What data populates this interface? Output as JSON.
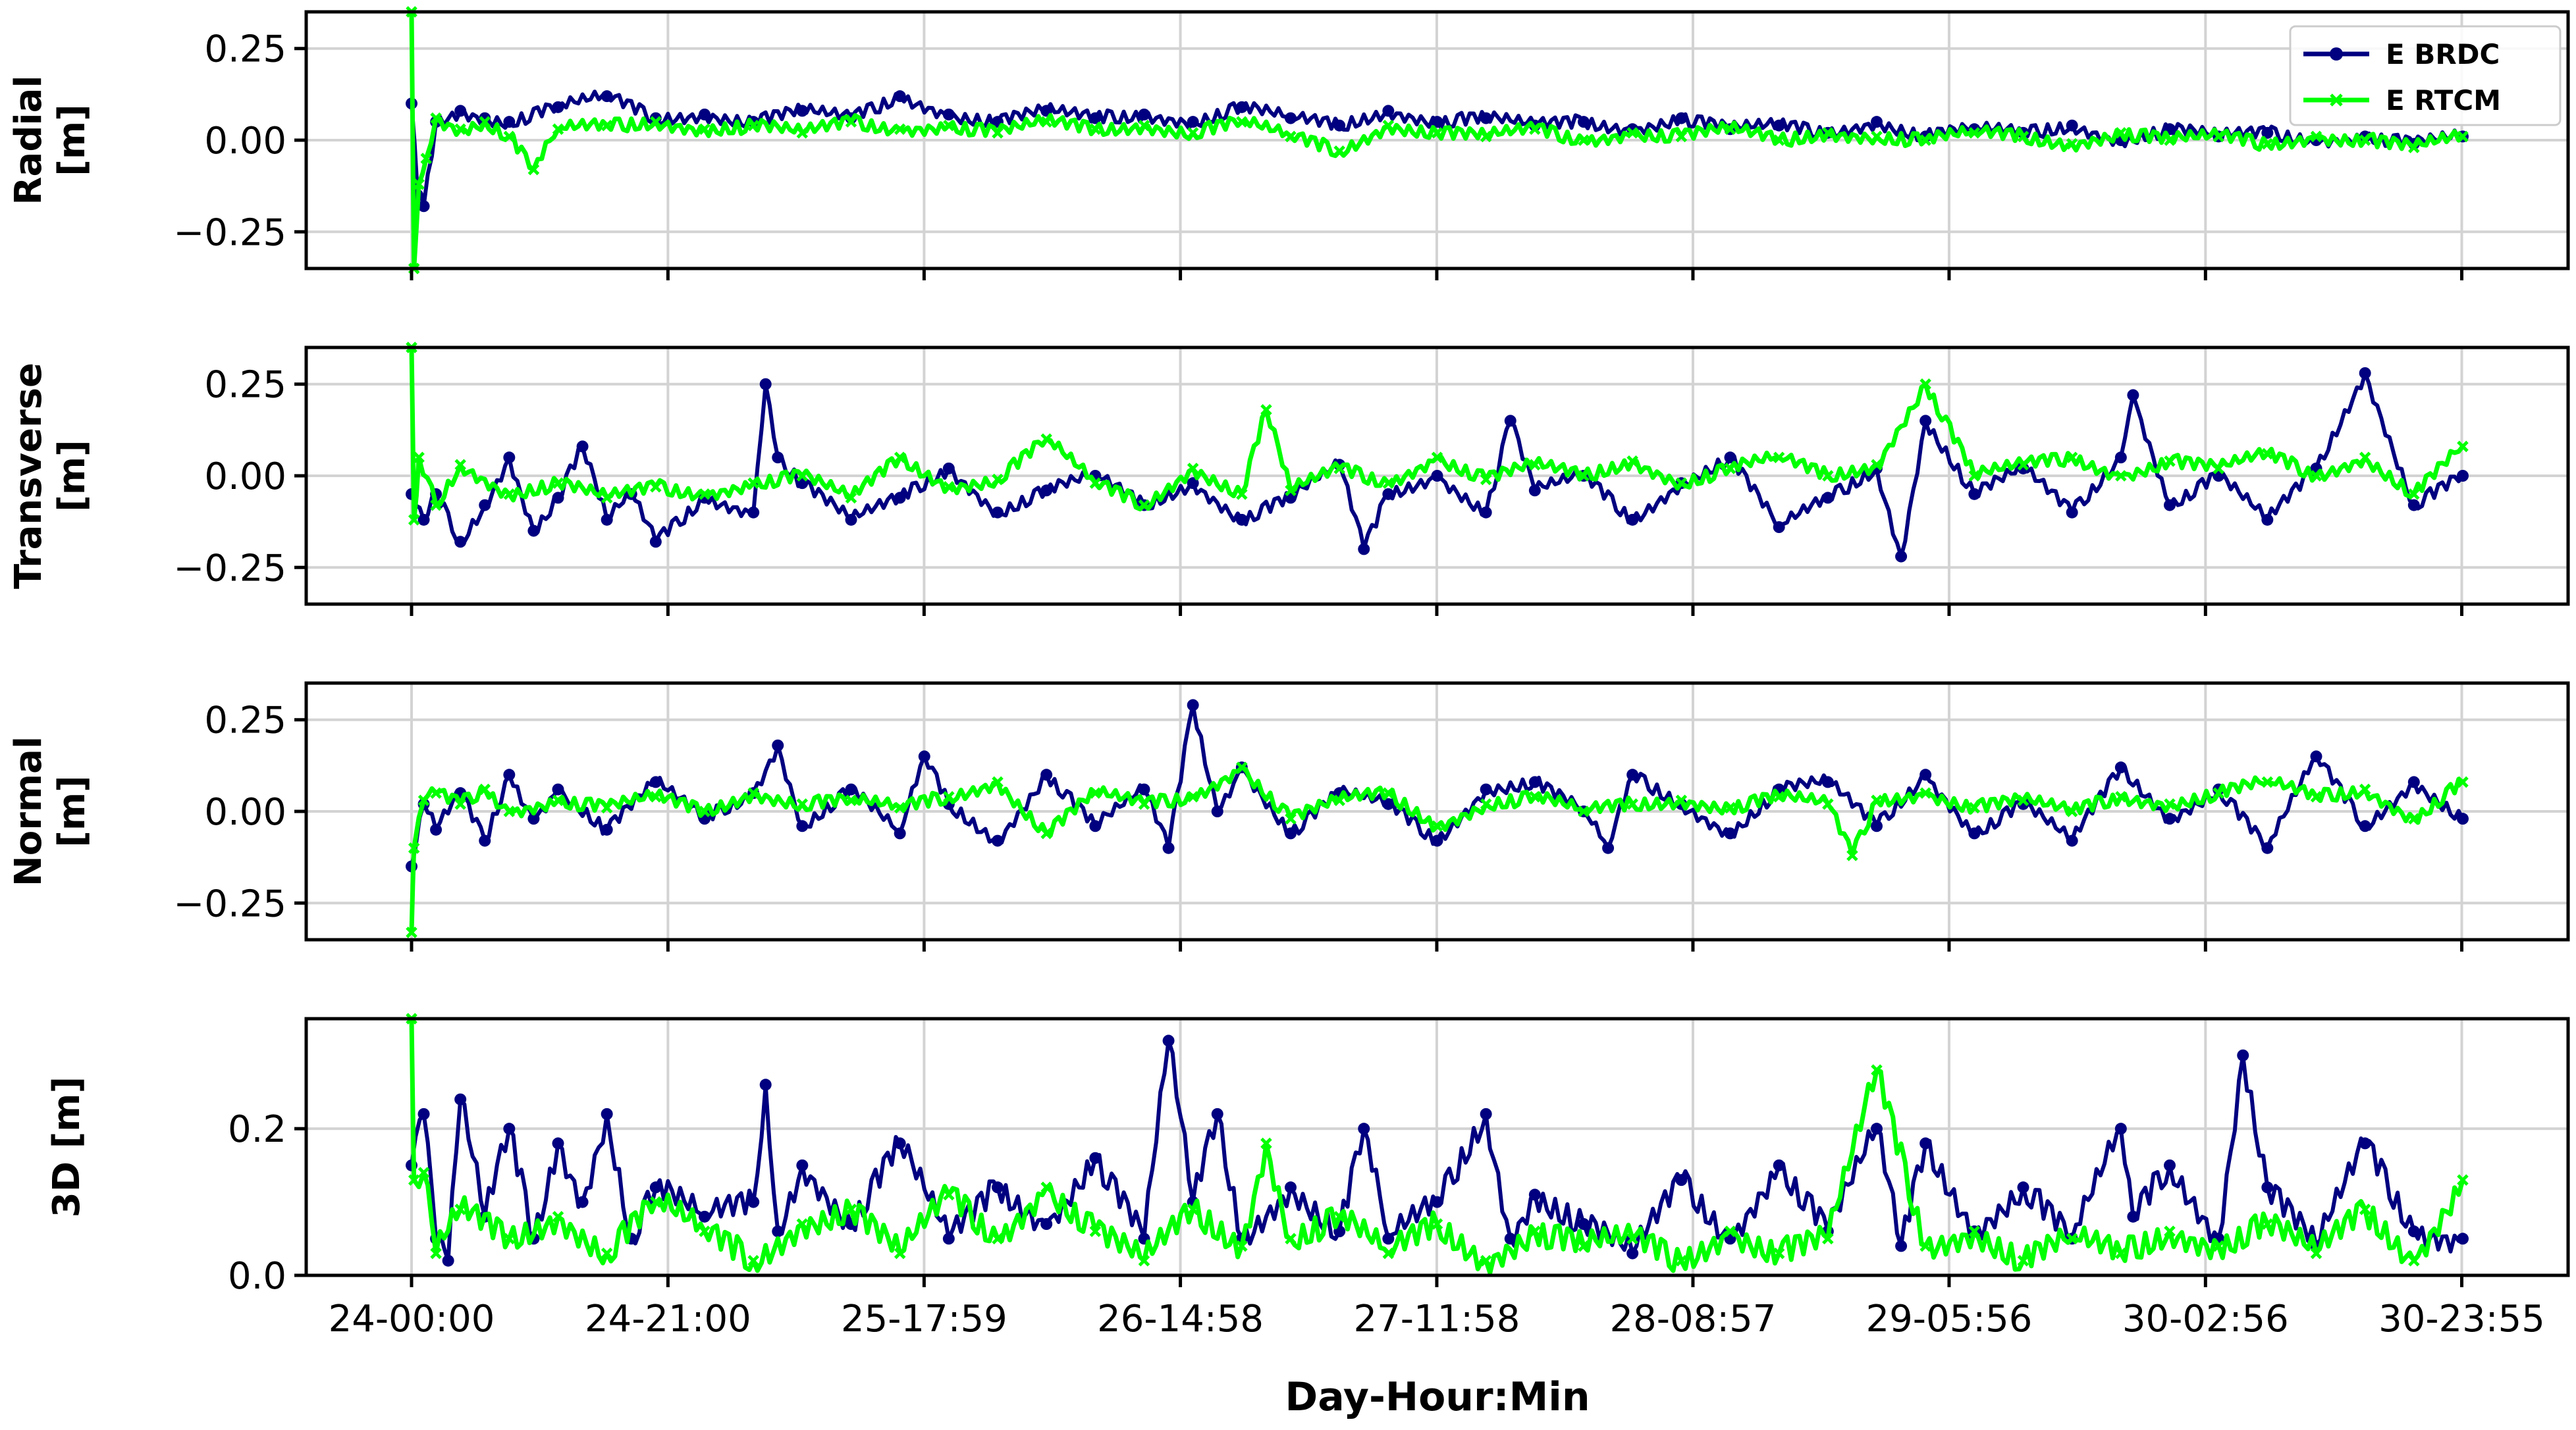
{
  "chart_data": {
    "type": "line",
    "xlabel": "Day-Hour:Min",
    "x_tick_labels": [
      "24-00:00",
      "24-21:00",
      "25-17:59",
      "26-14:58",
      "27-11:58",
      "28-08:57",
      "29-05:56",
      "30-02:56",
      "30-23:55"
    ],
    "x_range_hours": [
      0,
      168
    ],
    "x_tick_hours": [
      0,
      21,
      41.98,
      62.97,
      83.97,
      104.95,
      125.93,
      146.93,
      167.92
    ],
    "legend": [
      {
        "name": "E BRDC",
        "color": "#000080",
        "marker": "circle"
      },
      {
        "name": "E RTCM",
        "color": "#00ff00",
        "marker": "x"
      }
    ],
    "legend_position": "top-right",
    "grid": true,
    "subplots": [
      {
        "name": "radial",
        "ylabel_lines": [
          "Radial",
          "[m]"
        ],
        "ylim": [
          -0.35,
          0.35
        ],
        "yticks": [
          -0.25,
          0,
          0.25
        ],
        "ytick_labels": [
          "−0.25",
          "0.00",
          "0.25"
        ],
        "series": [
          {
            "name": "E BRDC",
            "x": [
              0,
              0.5,
              1,
              2,
              4,
              6,
              8,
              12,
              16,
              20,
              24,
              28,
              32,
              36,
              40,
              44,
              48,
              52,
              56,
              60,
              64,
              68,
              72,
              76,
              80,
              84,
              88,
              92,
              96,
              100,
              104,
              108,
              112,
              116,
              120,
              124,
              128,
              132,
              136,
              140,
              144,
              148,
              152,
              156,
              160,
              164,
              168
            ],
            "values": [
              0.1,
              -0.15,
              -0.18,
              0.05,
              0.08,
              0.06,
              0.05,
              0.09,
              0.12,
              0.06,
              0.07,
              0.05,
              0.08,
              0.06,
              0.12,
              0.07,
              0.05,
              0.08,
              0.06,
              0.07,
              0.05,
              0.09,
              0.06,
              0.04,
              0.08,
              0.05,
              0.06,
              0.04,
              0.05,
              0.03,
              0.06,
              0.03,
              0.04,
              0.02,
              0.05,
              0.01,
              0.03,
              0.02,
              0.04,
              0.0,
              0.03,
              0.01,
              0.02,
              0.0,
              0.01,
              -0.01,
              0.01
            ]
          },
          {
            "name": "E RTCM",
            "x": [
              0,
              0.2,
              0.6,
              1.2,
              2,
              4,
              6,
              8,
              10,
              12,
              16,
              20,
              24,
              28,
              32,
              36,
              40,
              44,
              48,
              52,
              56,
              60,
              64,
              68,
              72,
              76,
              80,
              84,
              88,
              92,
              96,
              100,
              104,
              108,
              112,
              116,
              120,
              124,
              128,
              132,
              136,
              140,
              144,
              148,
              152,
              156,
              160,
              164,
              168
            ],
            "values": [
              0.35,
              -0.35,
              -0.12,
              -0.05,
              0.06,
              0.03,
              0.05,
              0.01,
              -0.08,
              0.03,
              0.04,
              0.05,
              0.03,
              0.04,
              0.02,
              0.05,
              0.03,
              0.04,
              0.02,
              0.05,
              0.03,
              0.04,
              0.02,
              0.05,
              0.01,
              -0.03,
              0.04,
              0.02,
              0.01,
              0.03,
              0.0,
              0.02,
              0.01,
              0.03,
              0.0,
              0.02,
              0.01,
              0.0,
              0.02,
              0.01,
              -0.01,
              0.02,
              0.0,
              0.01,
              -0.01,
              0.01,
              0.0,
              -0.02,
              0.01
            ]
          }
        ]
      },
      {
        "name": "transverse",
        "ylabel_lines": [
          "Transverse",
          "[m]"
        ],
        "ylim": [
          -0.35,
          0.35
        ],
        "yticks": [
          -0.25,
          0,
          0.25
        ],
        "ytick_labels": [
          "−0.25",
          "0.00",
          "0.25"
        ],
        "series": [
          {
            "name": "E BRDC",
            "x": [
              0,
              1,
              2,
              4,
              6,
              8,
              10,
              12,
              14,
              16,
              18,
              20,
              24,
              28,
              29,
              30,
              32,
              36,
              40,
              44,
              48,
              52,
              56,
              60,
              64,
              68,
              72,
              76,
              78,
              80,
              84,
              88,
              90,
              92,
              96,
              100,
              104,
              108,
              112,
              116,
              120,
              122,
              124,
              128,
              132,
              136,
              140,
              141,
              144,
              148,
              152,
              156,
              160,
              164,
              168
            ],
            "values": [
              -0.05,
              -0.12,
              -0.05,
              -0.18,
              -0.08,
              0.05,
              -0.15,
              -0.06,
              0.08,
              -0.12,
              -0.05,
              -0.18,
              -0.06,
              -0.1,
              0.25,
              0.05,
              -0.02,
              -0.12,
              -0.06,
              0.02,
              -0.1,
              -0.04,
              0.0,
              -0.08,
              -0.02,
              -0.12,
              -0.06,
              0.03,
              -0.2,
              -0.05,
              0.0,
              -0.1,
              0.15,
              -0.04,
              0.0,
              -0.12,
              -0.02,
              0.05,
              -0.14,
              -0.06,
              0.02,
              -0.22,
              0.15,
              -0.05,
              0.02,
              -0.1,
              0.05,
              0.22,
              -0.08,
              0.0,
              -0.12,
              0.02,
              0.28,
              -0.08,
              0.0
            ]
          },
          {
            "name": "E RTCM",
            "x": [
              0,
              0.2,
              0.6,
              2,
              4,
              8,
              12,
              16,
              20,
              24,
              28,
              32,
              36,
              40,
              44,
              48,
              52,
              56,
              60,
              64,
              68,
              70,
              72,
              76,
              80,
              84,
              88,
              92,
              96,
              100,
              104,
              108,
              112,
              116,
              120,
              124,
              128,
              132,
              136,
              140,
              144,
              148,
              152,
              156,
              160,
              164,
              168
            ],
            "values": [
              0.35,
              -0.12,
              0.05,
              -0.08,
              0.03,
              -0.05,
              -0.02,
              -0.06,
              -0.03,
              -0.05,
              -0.02,
              0.0,
              -0.06,
              0.05,
              -0.03,
              -0.01,
              0.1,
              -0.02,
              -0.08,
              0.02,
              -0.05,
              0.18,
              -0.04,
              0.02,
              -0.02,
              0.05,
              -0.01,
              0.03,
              0.0,
              0.04,
              -0.02,
              0.02,
              0.05,
              0.0,
              0.03,
              0.25,
              0.0,
              0.03,
              0.05,
              0.0,
              0.04,
              0.02,
              0.06,
              0.0,
              0.05,
              -0.05,
              0.08
            ]
          }
        ]
      },
      {
        "name": "normal",
        "ylabel_lines": [
          "Normal",
          "[m]"
        ],
        "ylim": [
          -0.35,
          0.35
        ],
        "yticks": [
          -0.25,
          0,
          0.25
        ],
        "ytick_labels": [
          "−0.25",
          "0.00",
          "0.25"
        ],
        "series": [
          {
            "name": "E BRDC",
            "x": [
              0,
              1,
              2,
              4,
              6,
              8,
              10,
              12,
              16,
              20,
              24,
              28,
              30,
              32,
              36,
              40,
              42,
              44,
              48,
              52,
              56,
              60,
              62,
              64,
              66,
              68,
              72,
              76,
              80,
              84,
              88,
              92,
              96,
              98,
              100,
              104,
              108,
              112,
              116,
              120,
              124,
              128,
              132,
              136,
              140,
              144,
              148,
              152,
              156,
              160,
              164,
              168
            ],
            "values": [
              -0.15,
              0.02,
              -0.05,
              0.05,
              -0.08,
              0.1,
              -0.02,
              0.06,
              -0.05,
              0.08,
              -0.02,
              0.05,
              0.18,
              -0.04,
              0.06,
              -0.06,
              0.15,
              0.02,
              -0.08,
              0.1,
              -0.04,
              0.06,
              -0.1,
              0.29,
              0.0,
              0.12,
              -0.06,
              0.05,
              0.02,
              -0.08,
              0.06,
              0.08,
              0.0,
              -0.1,
              0.1,
              0.02,
              -0.06,
              0.06,
              0.08,
              -0.04,
              0.1,
              -0.06,
              0.02,
              -0.08,
              0.12,
              -0.02,
              0.06,
              -0.1,
              0.15,
              -0.04,
              0.08,
              -0.02
            ]
          },
          {
            "name": "E RTCM",
            "x": [
              0,
              0.2,
              1,
              2,
              4,
              6,
              8,
              12,
              16,
              20,
              24,
              28,
              32,
              36,
              40,
              44,
              48,
              52,
              56,
              60,
              64,
              68,
              72,
              76,
              80,
              84,
              88,
              92,
              96,
              100,
              104,
              108,
              112,
              116,
              118,
              120,
              124,
              128,
              132,
              136,
              140,
              144,
              148,
              152,
              156,
              160,
              164,
              168
            ],
            "values": [
              -0.33,
              -0.1,
              0.03,
              0.05,
              0.02,
              0.06,
              0.0,
              0.03,
              0.01,
              0.04,
              0.0,
              0.05,
              0.02,
              0.03,
              0.01,
              0.04,
              0.08,
              -0.06,
              0.05,
              0.02,
              0.04,
              0.12,
              -0.02,
              0.03,
              0.05,
              -0.04,
              0.02,
              0.04,
              0.0,
              0.02,
              0.03,
              0.01,
              0.04,
              0.02,
              -0.12,
              0.03,
              0.05,
              0.01,
              0.03,
              0.0,
              0.04,
              0.02,
              0.05,
              0.08,
              0.04,
              0.06,
              -0.02,
              0.08
            ]
          }
        ]
      },
      {
        "name": "3d",
        "ylabel_lines": [
          "3D [m]"
        ],
        "ylim": [
          0,
          0.35
        ],
        "yticks": [
          0,
          0.2
        ],
        "ytick_labels": [
          "0.0",
          "0.2"
        ],
        "series": [
          {
            "name": "E BRDC",
            "x": [
              0,
              1,
              2,
              3,
              4,
              6,
              8,
              10,
              12,
              14,
              16,
              18,
              20,
              24,
              28,
              29,
              30,
              32,
              36,
              40,
              44,
              48,
              52,
              56,
              60,
              62,
              64,
              66,
              68,
              72,
              76,
              78,
              80,
              84,
              88,
              90,
              92,
              96,
              100,
              104,
              108,
              112,
              116,
              120,
              122,
              124,
              128,
              132,
              136,
              140,
              141,
              144,
              148,
              150,
              152,
              156,
              160,
              164,
              168
            ],
            "values": [
              0.15,
              0.22,
              0.05,
              0.02,
              0.24,
              0.08,
              0.2,
              0.05,
              0.18,
              0.1,
              0.22,
              0.05,
              0.12,
              0.08,
              0.1,
              0.26,
              0.06,
              0.15,
              0.07,
              0.18,
              0.05,
              0.12,
              0.07,
              0.16,
              0.05,
              0.32,
              0.1,
              0.22,
              0.05,
              0.12,
              0.06,
              0.2,
              0.05,
              0.1,
              0.22,
              0.05,
              0.11,
              0.07,
              0.03,
              0.13,
              0.05,
              0.15,
              0.06,
              0.2,
              0.04,
              0.18,
              0.06,
              0.12,
              0.05,
              0.2,
              0.08,
              0.15,
              0.05,
              0.3,
              0.12,
              0.04,
              0.18,
              0.06,
              0.05
            ]
          },
          {
            "name": "E RTCM",
            "x": [
              0,
              0.2,
              1,
              2,
              4,
              8,
              12,
              16,
              20,
              24,
              28,
              32,
              36,
              40,
              44,
              48,
              52,
              56,
              60,
              64,
              68,
              70,
              72,
              76,
              80,
              84,
              88,
              92,
              96,
              100,
              104,
              108,
              112,
              116,
              120,
              124,
              128,
              132,
              136,
              140,
              144,
              148,
              152,
              156,
              160,
              164,
              168
            ],
            "values": [
              0.35,
              0.13,
              0.14,
              0.03,
              0.09,
              0.05,
              0.08,
              0.03,
              0.1,
              0.06,
              0.02,
              0.07,
              0.09,
              0.03,
              0.11,
              0.05,
              0.12,
              0.06,
              0.02,
              0.09,
              0.04,
              0.18,
              0.05,
              0.08,
              0.03,
              0.07,
              0.02,
              0.06,
              0.04,
              0.05,
              0.02,
              0.06,
              0.03,
              0.05,
              0.28,
              0.04,
              0.06,
              0.02,
              0.05,
              0.03,
              0.06,
              0.04,
              0.07,
              0.03,
              0.09,
              0.02,
              0.13
            ]
          }
        ]
      }
    ]
  }
}
